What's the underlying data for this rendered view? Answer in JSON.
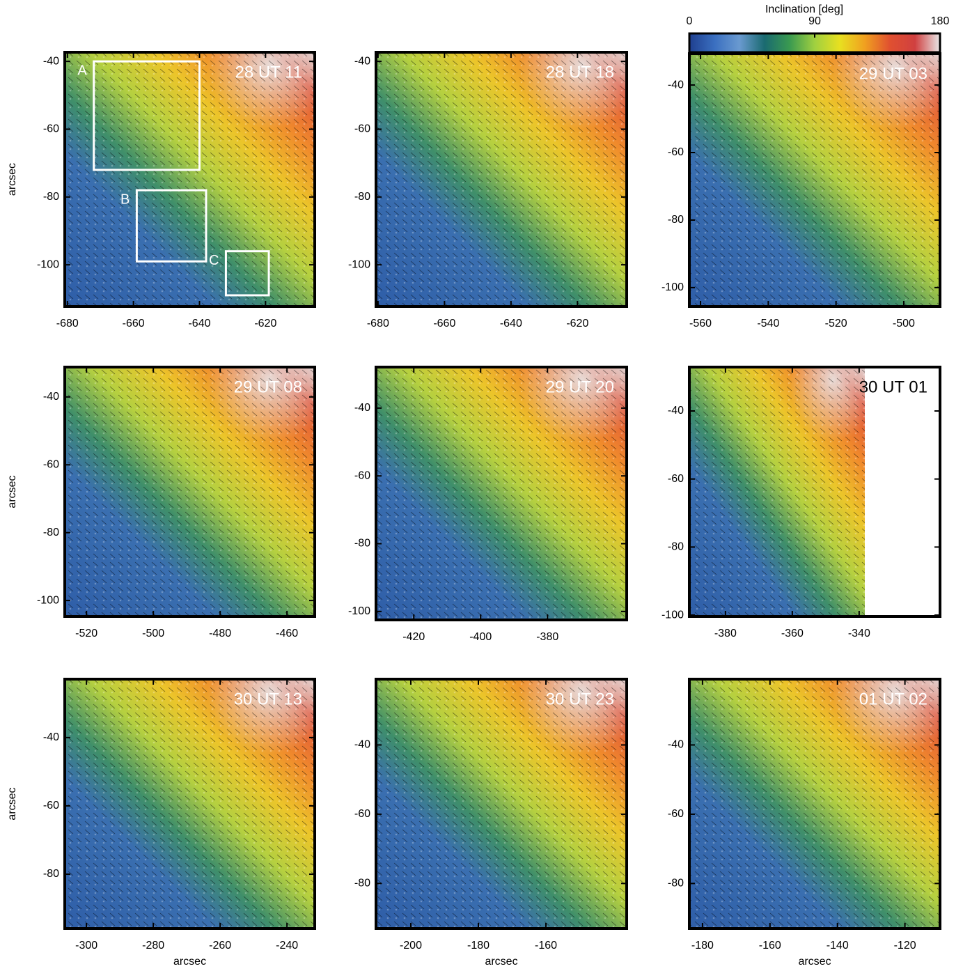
{
  "chart_data": [
    {
      "type": "image",
      "title": "28 UT 11",
      "title_color": "#ffffff",
      "ylabel": "arcsec",
      "xlim": [
        -680.8,
        -605.1
      ],
      "ylim": [
        -112.3,
        -37.3
      ],
      "xticks": [
        -680,
        -660,
        -640,
        -620
      ],
      "yticks": [
        -40,
        -60,
        -80,
        -100
      ],
      "regions": [
        {
          "name": "A",
          "xlim": [
            -672,
            -640
          ],
          "ylim": [
            -72,
            -40
          ]
        },
        {
          "name": "B",
          "xlim": [
            -659,
            -638
          ],
          "ylim": [
            -99,
            -78
          ]
        },
        {
          "name": "C",
          "xlim": [
            -632,
            -619
          ],
          "ylim": [
            -109,
            -96
          ]
        }
      ]
    },
    {
      "type": "image",
      "title": "28 UT 18",
      "title_color": "#ffffff",
      "xlim": [
        -680.6,
        -605.2
      ],
      "ylim": [
        -112.3,
        -37.3
      ],
      "xticks": [
        -680,
        -660,
        -640,
        -620
      ],
      "yticks": [
        -40,
        -60,
        -80,
        -100
      ]
    },
    {
      "type": "image",
      "title": "29 UT 03",
      "title_color": "#ffffff",
      "xlim": [
        -563.3,
        -489.3
      ],
      "ylim": [
        -105.6,
        -30.7
      ],
      "xticks": [
        -560,
        -540,
        -520,
        -500
      ],
      "yticks": [
        -40,
        -60,
        -80,
        -100
      ]
    },
    {
      "type": "image",
      "title": "29 UT 08",
      "title_color": "#ffffff",
      "ylabel": "arcsec",
      "xlim": [
        -526.5,
        -451.7
      ],
      "ylim": [
        -104.7,
        -31.2
      ],
      "xticks": [
        -520,
        -500,
        -480,
        -460
      ],
      "yticks": [
        -40,
        -60,
        -80,
        -100
      ]
    },
    {
      "type": "image",
      "title": "29 UT 20",
      "title_color": "#ffffff",
      "xlim": [
        -431.3,
        -356.3
      ],
      "ylim": [
        -102.5,
        -27.9
      ],
      "xticks": [
        -420,
        -400,
        -380
      ],
      "yticks": [
        -40,
        -60,
        -80,
        -100
      ]
    },
    {
      "type": "image",
      "title": "30 UT 01",
      "title_color": "#000000",
      "xlim": [
        -390.8,
        -315.8
      ],
      "ylim": [
        -100.4,
        -27.1
      ],
      "xticks": [
        -380,
        -360,
        -340
      ],
      "yticks": [
        -40,
        -60,
        -80,
        -100
      ]
    },
    {
      "type": "image",
      "title": "30 UT 13",
      "title_color": "#ffffff",
      "ylabel": "arcsec",
      "xlabel": "arcsec",
      "xlim": [
        -306.5,
        -231.7
      ],
      "ylim": [
        -95.9,
        -22.9
      ],
      "xticks": [
        -300,
        -280,
        -260,
        -240
      ],
      "yticks": [
        -40,
        -60,
        -80
      ]
    },
    {
      "type": "image",
      "title": "30 UT 23",
      "title_color": "#ffffff",
      "xlabel": "arcsec",
      "xlim": [
        -210.3,
        -136.1
      ],
      "ylim": [
        -93,
        -21
      ],
      "xticks": [
        -200,
        -180,
        -160
      ],
      "yticks": [
        -40,
        -60,
        -80
      ]
    },
    {
      "type": "image",
      "title": "01 UT 02",
      "title_color": "#ffffff",
      "xlabel": "arcsec",
      "xlim": [
        -183.9,
        -109.6
      ],
      "ylim": [
        -93,
        -21
      ],
      "xticks": [
        -180,
        -160,
        -140,
        -120
      ],
      "yticks": [
        -40,
        -60,
        -80
      ]
    }
  ],
  "colorbar": {
    "label": "Inclination [deg]",
    "lim": [
      0,
      180
    ],
    "ticks": [
      0,
      90,
      180
    ],
    "colors": [
      "#1f3f8f",
      "#3a6fc0",
      "#6a9ad0",
      "#1a6a70",
      "#3a9a50",
      "#a0d040",
      "#e8e020",
      "#f0a020",
      "#e05030",
      "#d04040",
      "#e8e8e8"
    ]
  }
}
